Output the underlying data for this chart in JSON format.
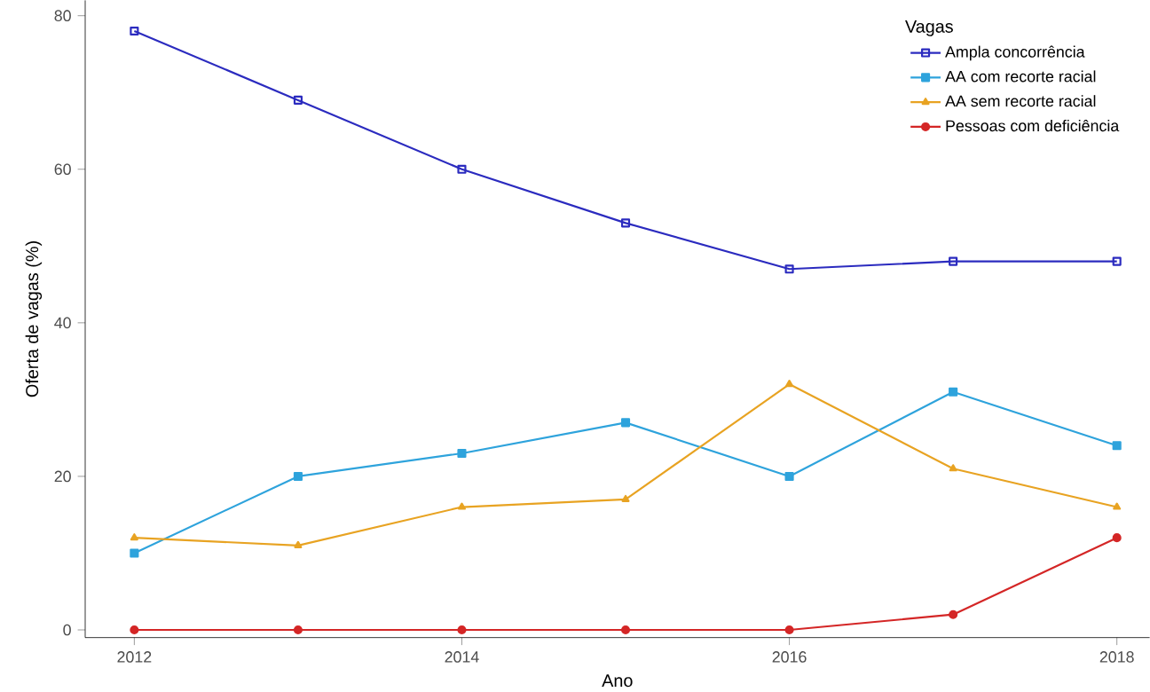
{
  "chart_data": {
    "type": "line",
    "xlabel": "Ano",
    "ylabel": "Oferta de vagas (%)",
    "legend_title": "Vagas",
    "x": [
      2012,
      2013,
      2014,
      2015,
      2016,
      2017,
      2018
    ],
    "xlim": [
      2011.7,
      2018.2
    ],
    "xticks": [
      2012,
      2014,
      2016,
      2018
    ],
    "ylim": [
      -1,
      82
    ],
    "yticks": [
      0,
      20,
      40,
      60,
      80
    ],
    "grid": false,
    "legend": "top right",
    "series": [
      {
        "name": "Ampla concorrência",
        "color": "#2b2bbf",
        "marker": "square_open",
        "values": [
          78,
          69,
          60,
          53,
          47,
          48,
          48
        ]
      },
      {
        "name": "AA com recorte racial",
        "color": "#2ea3dc",
        "marker": "square",
        "values": [
          10,
          20,
          23,
          27,
          20,
          31,
          24
        ]
      },
      {
        "name": "AA sem recorte racial",
        "color": "#e8a322",
        "marker": "triangle",
        "values": [
          12,
          11,
          16,
          17,
          32,
          21,
          16
        ]
      },
      {
        "name": "Pessoas com deficiência",
        "color": "#d42626",
        "marker": "circle",
        "values": [
          0,
          0,
          0,
          0,
          0,
          2,
          12
        ]
      }
    ]
  }
}
